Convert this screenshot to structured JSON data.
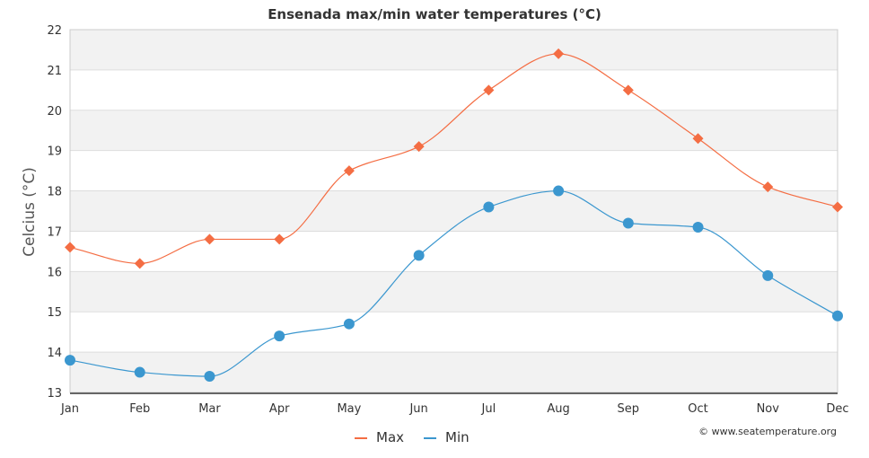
{
  "chart_data": {
    "type": "line",
    "title": "Ensenada max/min water temperatures (°C)",
    "xlabel": "",
    "ylabel": "Celcius (°C)",
    "categories": [
      "Jan",
      "Feb",
      "Mar",
      "Apr",
      "May",
      "Jun",
      "Jul",
      "Aug",
      "Sep",
      "Oct",
      "Nov",
      "Dec"
    ],
    "ylim": [
      13,
      22
    ],
    "yticks": [
      13,
      14,
      15,
      16,
      17,
      18,
      19,
      20,
      21,
      22
    ],
    "series": [
      {
        "name": "Max",
        "color": "#f46d43",
        "marker": "diamond",
        "values": [
          16.6,
          16.2,
          16.8,
          16.8,
          18.5,
          19.1,
          20.5,
          21.4,
          20.5,
          19.3,
          18.1,
          17.6
        ]
      },
      {
        "name": "Min",
        "color": "#3b97cf",
        "marker": "circle",
        "values": [
          13.8,
          13.5,
          13.4,
          14.4,
          14.7,
          16.4,
          17.6,
          18.0,
          17.2,
          17.1,
          15.9,
          14.9
        ]
      }
    ],
    "legend": "bottom-center",
    "credit": "© www.seatemperature.org",
    "grid": true
  }
}
